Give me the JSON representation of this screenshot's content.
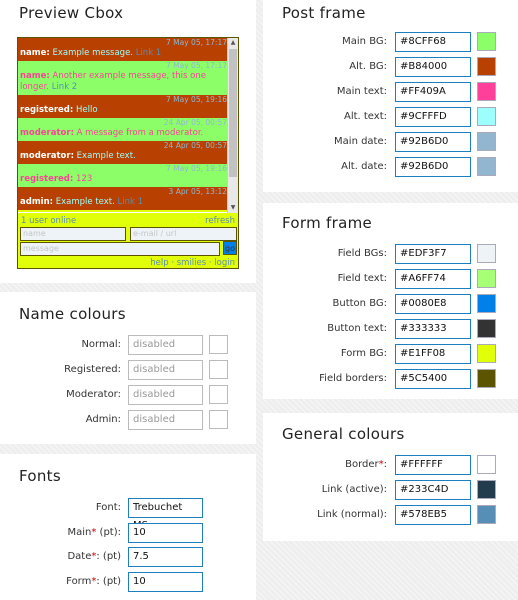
{
  "preview": {
    "title": "Preview Cbox",
    "messages": [
      {
        "date": "7 May 05, 17:17",
        "name": "name:",
        "text": " Example message. ",
        "link": "Link 1",
        "style": "alt"
      },
      {
        "date": "7 May 05, 17:17",
        "name": "name:",
        "text": " Another example message, this one longer. ",
        "link": "Link 2",
        "style": "main"
      },
      {
        "date": "7 May 05, 19:16",
        "name": "registered:",
        "text": " Hello",
        "link": "",
        "style": "alt"
      },
      {
        "date": "24 Apr 05, 00:57",
        "name": "moderator:",
        "text": " A message from a moderator.",
        "link": "",
        "style": "main"
      },
      {
        "date": "24 Apr 05, 00:57",
        "name": "moderator:",
        "text": " Example text.",
        "link": "",
        "style": "alt"
      },
      {
        "date": "7 May 05, 19:16",
        "name": "registered:",
        "text": " 123",
        "link": "",
        "style": "main"
      },
      {
        "date": "3 Apr 05, 13:12",
        "name": "admin:",
        "text": " Example text. ",
        "link": "Link 1",
        "style": "alt"
      }
    ],
    "online": "1 user online",
    "refresh": "refresh",
    "name_placeholder": "name",
    "email_placeholder": "e-mail / url",
    "message_placeholder": "message",
    "go": "go",
    "footer_links": "help · smilies · login"
  },
  "name_colours": {
    "title": "Name colours",
    "rows": [
      {
        "label": "Normal:",
        "value": "disabled"
      },
      {
        "label": "Registered:",
        "value": "disabled"
      },
      {
        "label": "Moderator:",
        "value": "disabled"
      },
      {
        "label": "Admin:",
        "value": "disabled"
      }
    ]
  },
  "fonts": {
    "title": "Fonts",
    "font_label": "Font:",
    "font_value": "Trebuchet MS",
    "main_label": "Main",
    "main_unit": " (pt):",
    "main_value": "10",
    "date_label": "Date",
    "date_unit": ": (pt)",
    "date_value": "7.5",
    "form_label": "Form",
    "form_unit": ": (pt)",
    "form_value": "10",
    "required_mark": "*"
  },
  "post_frame": {
    "title": "Post frame",
    "rows": [
      {
        "label": "Main BG:",
        "hex": "#8CFF68",
        "color": "#8CFF68"
      },
      {
        "label": "Alt. BG:",
        "hex": "#B84000",
        "color": "#B84000"
      },
      {
        "label": "Main text:",
        "hex": "#FF409A",
        "color": "#FF409A"
      },
      {
        "label": "Alt. text:",
        "hex": "#9CFFFD",
        "color": "#9CFFFD"
      },
      {
        "label": "Main date:",
        "hex": "#92B6D0",
        "color": "#92B6D0"
      },
      {
        "label": "Alt. date:",
        "hex": "#92B6D0",
        "color": "#92B6D0"
      }
    ]
  },
  "form_frame": {
    "title": "Form frame",
    "rows": [
      {
        "label": "Field BGs:",
        "hex": "#EDF3F7",
        "color": "#EDF3F7"
      },
      {
        "label": "Field text:",
        "hex": "#A6FF74",
        "color": "#A6FF74"
      },
      {
        "label": "Button BG:",
        "hex": "#0080E8",
        "color": "#0080E8"
      },
      {
        "label": "Button text:",
        "hex": "#333333",
        "color": "#333333"
      },
      {
        "label": "Form BG:",
        "hex": "#E1FF08",
        "color": "#E1FF08"
      },
      {
        "label": "Field borders:",
        "hex": "#5C5400",
        "color": "#5C5400"
      }
    ]
  },
  "general_colours": {
    "title": "General colours",
    "rows": [
      {
        "label": "Border",
        "req": "*",
        "tail": ":",
        "hex": "#FFFFFF",
        "color": "#FFFFFF"
      },
      {
        "label": "Link (active):",
        "req": "",
        "tail": "",
        "hex": "#233C4D",
        "color": "#233C4D"
      },
      {
        "label": "Link (normal):",
        "req": "",
        "tail": "",
        "hex": "#578EB5",
        "color": "#578EB5"
      }
    ]
  }
}
